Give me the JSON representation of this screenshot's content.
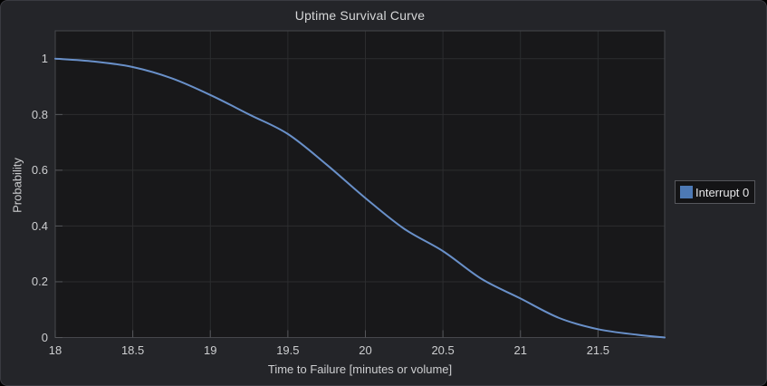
{
  "panel": {
    "title": "Uptime Survival Curve"
  },
  "axes": {
    "x": {
      "label": "Time to Failure [minutes or volume]",
      "min": 18,
      "max": 21.93,
      "ticks": [
        18,
        18.5,
        19,
        19.5,
        20,
        20.5,
        21,
        21.5
      ],
      "tick_labels": [
        "18",
        "18.5",
        "19",
        "19.5",
        "20",
        "20.5",
        "21",
        "21.5"
      ]
    },
    "y": {
      "label": "Probability",
      "min": 0,
      "max": 1.1,
      "ticks": [
        0,
        0.2,
        0.4,
        0.6,
        0.8,
        1
      ],
      "tick_labels": [
        "0",
        "0.2",
        "0.4",
        "0.6",
        "0.8",
        "1"
      ]
    }
  },
  "legend": {
    "items": [
      {
        "label": "Interrupt 0",
        "swatch_color": "#4d79b5"
      }
    ]
  },
  "colors": {
    "panel_background": "#242529",
    "plot_background": "#18181a",
    "plot_border": "#46474c",
    "grid": "#2c2d2f",
    "tick": "#55565a",
    "text": "#cdced0",
    "title_text": "#d6d7d8",
    "series_line": "#6990c9",
    "legend_swatch": "#4d79b5"
  },
  "chart_data": {
    "type": "line",
    "title": "Uptime Survival Curve",
    "xlabel": "Time to Failure [minutes or volume]",
    "ylabel": "Probability",
    "xlim": [
      18,
      21.93
    ],
    "ylim": [
      0,
      1.1
    ],
    "grid": true,
    "legend_position": "right-outside",
    "series": [
      {
        "name": "Interrupt 0",
        "color": "#6990c9",
        "x": [
          18.0,
          18.25,
          18.5,
          18.75,
          19.0,
          19.25,
          19.5,
          19.75,
          20.0,
          20.25,
          20.5,
          20.75,
          21.0,
          21.25,
          21.5,
          21.75,
          21.93
        ],
        "y": [
          1.0,
          0.99,
          0.97,
          0.93,
          0.87,
          0.8,
          0.73,
          0.62,
          0.5,
          0.39,
          0.31,
          0.21,
          0.14,
          0.07,
          0.03,
          0.01,
          0.0
        ]
      }
    ]
  }
}
